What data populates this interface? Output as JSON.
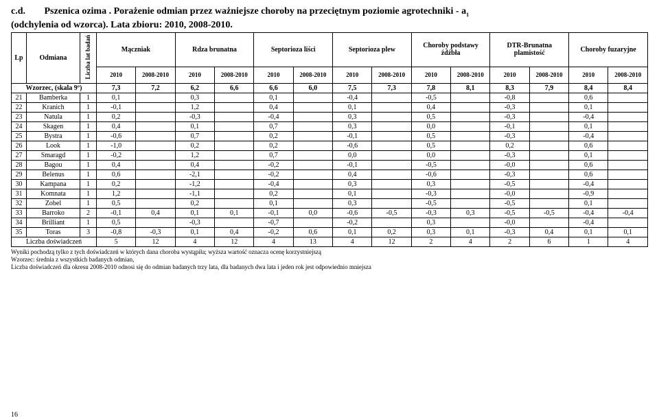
{
  "title": {
    "cd": "c.d.",
    "main": "Pszenica ozima . Porażenie odmian przez ważniejsze choroby na przeciętnym poziomie agrotechniki - a",
    "sub1": "1",
    "line2": "(odchylenia od wzorca). Lata zbioru: 2010, 2008-2010."
  },
  "headers": {
    "lp": "Lp",
    "odmiana": "Odmiana",
    "lat": "Liczba lat badań",
    "groups": [
      "Mączniak",
      "Rdza brunatna",
      "Septorioza liści",
      "Septorioza plew",
      "Choroby podstawy źdźbła",
      "DTR-Brunatna plamistość",
      "Choroby fuzaryjne"
    ],
    "year_a": "2010",
    "year_b": "2008-2010"
  },
  "wzorzec": {
    "label": "Wzorzec, (skala 9º)",
    "v": [
      "7,3",
      "7,2",
      "6,2",
      "6,6",
      "6,6",
      "6,0",
      "7,5",
      "7,3",
      "7,8",
      "8,1",
      "8,3",
      "7,9",
      "8,4",
      "8,4"
    ]
  },
  "rows": [
    {
      "lp": "21",
      "name": "Bamberka",
      "lat": "1",
      "c": [
        "0,1",
        "",
        "0,3",
        "",
        "0,1",
        "",
        "-0,4",
        "",
        "-0,5",
        "",
        "-0,8",
        "",
        "0,6",
        ""
      ]
    },
    {
      "lp": "22",
      "name": "Kranich",
      "lat": "1",
      "c": [
        "-0,1",
        "",
        "1,2",
        "",
        "0,4",
        "",
        "0,1",
        "",
        "0,4",
        "",
        "-0,3",
        "",
        "0,1",
        ""
      ]
    },
    {
      "lp": "23",
      "name": "Natula",
      "lat": "1",
      "c": [
        "0,2",
        "",
        "-0,3",
        "",
        "-0,4",
        "",
        "0,3",
        "",
        "0,5",
        "",
        "-0,3",
        "",
        "-0,4",
        ""
      ]
    },
    {
      "lp": "24",
      "name": "Skagen",
      "lat": "1",
      "c": [
        "0,4",
        "",
        "0,1",
        "",
        "0,7",
        "",
        "0,3",
        "",
        "0,0",
        "",
        "-0,1",
        "",
        "0,1",
        ""
      ]
    },
    {
      "lp": "25",
      "name": "Bystra",
      "lat": "1",
      "c": [
        "-0,6",
        "",
        "0,7",
        "",
        "0,2",
        "",
        "-0,1",
        "",
        "0,5",
        "",
        "-0,3",
        "",
        "-0,4",
        ""
      ]
    },
    {
      "lp": "26",
      "name": "Look",
      "lat": "1",
      "c": [
        "-1,0",
        "",
        "0,2",
        "",
        "0,2",
        "",
        "-0,6",
        "",
        "0,5",
        "",
        "0,2",
        "",
        "0,6",
        ""
      ]
    },
    {
      "lp": "27",
      "name": "Smaragd",
      "lat": "1",
      "c": [
        "-0,2",
        "",
        "1,2",
        "",
        "0,7",
        "",
        "0,0",
        "",
        "0,0",
        "",
        "-0,3",
        "",
        "0,1",
        ""
      ]
    },
    {
      "lp": "28",
      "name": "Bagou",
      "lat": "1",
      "c": [
        "0,4",
        "",
        "0,4",
        "",
        "-0,2",
        "",
        "-0,1",
        "",
        "-0,5",
        "",
        "-0,0",
        "",
        "0,6",
        ""
      ]
    },
    {
      "lp": "29",
      "name": "Belenus",
      "lat": "1",
      "c": [
        "0,6",
        "",
        "-2,1",
        "",
        "-0,2",
        "",
        "0,4",
        "",
        "-0,6",
        "",
        "-0,3",
        "",
        "0,6",
        ""
      ]
    },
    {
      "lp": "30",
      "name": "Kampana",
      "lat": "1",
      "c": [
        "0,2",
        "",
        "-1,2",
        "",
        "-0,4",
        "",
        "0,3",
        "",
        "0,3",
        "",
        "-0,5",
        "",
        "-0,4",
        ""
      ]
    },
    {
      "lp": "31",
      "name": "Komnata",
      "lat": "1",
      "c": [
        "1,2",
        "",
        "-1,1",
        "",
        "0,2",
        "",
        "0,1",
        "",
        "-0,3",
        "",
        "-0,0",
        "",
        "-0,9",
        ""
      ]
    },
    {
      "lp": "32",
      "name": "Zobel",
      "lat": "1",
      "c": [
        "0,5",
        "",
        "0,2",
        "",
        "0,1",
        "",
        "0,3",
        "",
        "-0,5",
        "",
        "-0,5",
        "",
        "0,1",
        ""
      ]
    },
    {
      "lp": "33",
      "name": "Barroko",
      "lat": "2",
      "c": [
        "-0,1",
        "0,4",
        "0,1",
        "0,1",
        "-0,1",
        "0,0",
        "-0,6",
        "-0,5",
        "-0,3",
        "0,3",
        "-0,5",
        "-0,5",
        "-0,4",
        "-0,4"
      ]
    },
    {
      "lp": "34",
      "name": "Brilliant",
      "lat": "1",
      "c": [
        "0,5",
        "",
        "-0,3",
        "",
        "-0,7",
        "",
        "-0,2",
        "",
        "0,3",
        "",
        "-0,0",
        "",
        "-0,4",
        ""
      ]
    },
    {
      "lp": "35",
      "name": "Toras",
      "lat": "3",
      "c": [
        "-0,8",
        "-0,3",
        "0,1",
        "0,4",
        "-0,2",
        "0,6",
        "0,1",
        "0,2",
        "0,3",
        "0,1",
        "-0,3",
        "0,4",
        "0,1",
        "0,1"
      ]
    }
  ],
  "footer_row": {
    "label": "Liczba doświadczeń",
    "c": [
      "5",
      "12",
      "4",
      "12",
      "4",
      "13",
      "4",
      "12",
      "2",
      "4",
      "2",
      "6",
      "1",
      "4"
    ]
  },
  "footnotes": [
    "Wyniki pochodzą tylko z tych doświadczeń w których dana choroba wystąpiła; wyższa wartość oznacza ocenę korzystniejszą",
    "Wzorzec: średnia z wszystkich badanych odmian,",
    "Liczba doświadczeń dla okresu 2008-2010 odnosi się do odmian badanych trzy lata, dla badanych dwa lata i jeden rok jest odpowiednio mniejsza"
  ],
  "page_number": "16"
}
